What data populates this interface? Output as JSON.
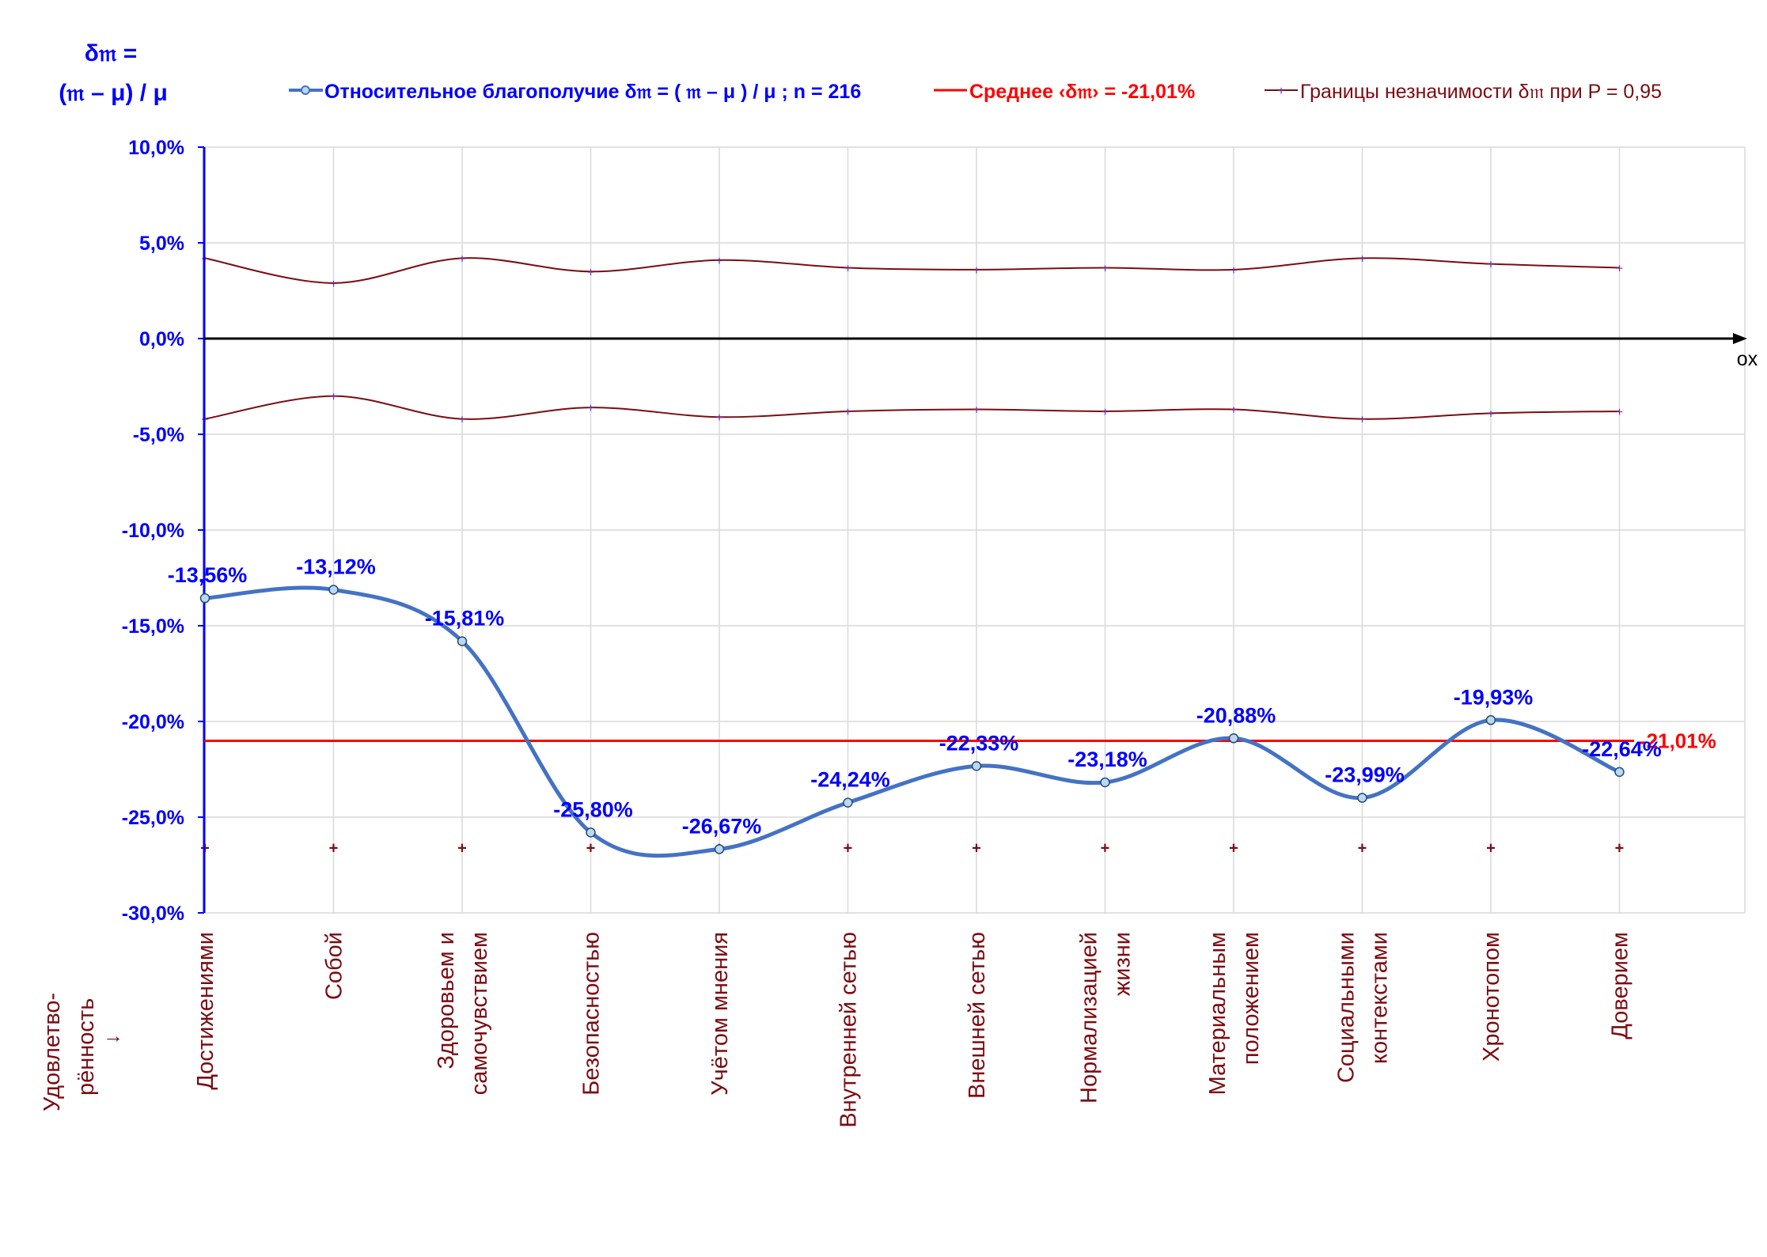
{
  "chart_data": {
    "type": "line",
    "y_axis_label_line1": "δ𝔪 =",
    "y_axis_label_line2": "(𝔪 – μ) / μ",
    "x_axis_end_label": "ox",
    "x_axis_left_label": {
      "line1": "Удовлетво-",
      "line2": "рённость",
      "arrow": "→"
    },
    "categories": [
      [
        "Достижениями"
      ],
      [
        "Собой"
      ],
      [
        "Здоровьем и",
        "самочувствием"
      ],
      [
        "Безопасностью"
      ],
      [
        "Учётом мнения"
      ],
      [
        "Внутренней сетью"
      ],
      [
        "Внешней сетью"
      ],
      [
        "Нормализацией",
        "жизни"
      ],
      [
        "Материальным",
        "положением"
      ],
      [
        "Социальными",
        "контекстами"
      ],
      [
        "Хронотопом"
      ],
      [
        "Доверием"
      ]
    ],
    "series": [
      {
        "name": "Относительное благополучие δ𝔪 = ( 𝔪 – μ ) / μ ; n = 216",
        "values": [
          -13.56,
          -13.12,
          -15.81,
          -25.8,
          -26.67,
          -24.24,
          -22.33,
          -23.18,
          -20.88,
          -23.99,
          -19.93,
          -22.64
        ],
        "data_labels": [
          "-13,56%",
          "-13,12%",
          "-15,81%",
          "-25,80%",
          "-26,67%",
          "-24,24%",
          "-22,33%",
          "-23,18%",
          "-20,88%",
          "-23,99%",
          "-19,93%",
          "-22,64%"
        ]
      },
      {
        "name": "Среднее ‹δ𝔪› = -21,01%",
        "value": -21.01,
        "data_label": "-21,01%"
      },
      {
        "name": "Границы незначимости δ𝔪 при P = 0,95",
        "upper": [
          4.2,
          2.9,
          4.2,
          3.5,
          4.1,
          3.7,
          3.6,
          3.7,
          3.6,
          4.2,
          3.9,
          3.7
        ],
        "lower": [
          -4.2,
          -3.0,
          -4.2,
          -3.6,
          -4.1,
          -3.8,
          -3.7,
          -3.8,
          -3.7,
          -4.2,
          -3.9,
          -3.8
        ],
        "bottom_markers": -26.6
      }
    ],
    "y_ticks": [
      "10,0%",
      "5,0%",
      "0,0%",
      "-5,0%",
      "-10,0%",
      "-15,0%",
      "-20,0%",
      "-25,0%",
      "-30,0%"
    ],
    "ylim": [
      -30,
      10
    ],
    "grid": true,
    "legend_position": "top",
    "colors": {
      "main": "#4472C4",
      "main_text": "#0000FF",
      "mean": "#FF0000",
      "bounds": "#7B0C12",
      "bounds_marker": "#7030A0",
      "category_text": "#7B0C12",
      "axis": "#000000",
      "yaxis": "#0000FF",
      "grid": "#D9D9D9"
    }
  }
}
